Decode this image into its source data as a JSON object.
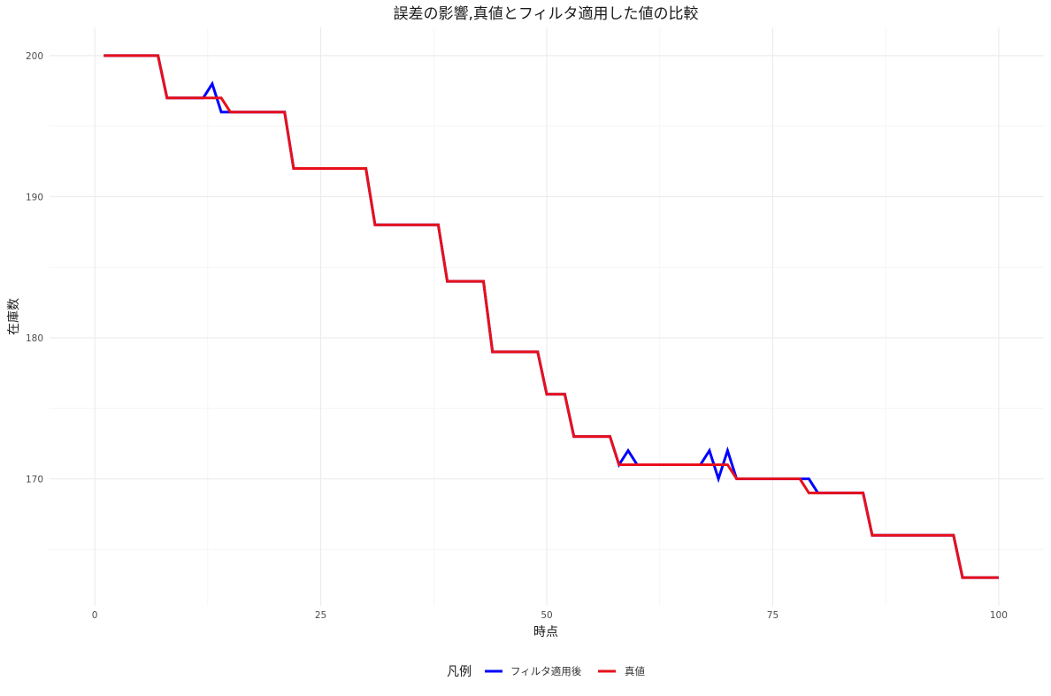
{
  "chart_data": {
    "type": "line",
    "title": "誤差の影響,真値とフィルタ適用した値の比較",
    "xlabel": "時点",
    "ylabel": "在庫数",
    "xlim": [
      0,
      100
    ],
    "ylim": [
      161,
      202
    ],
    "x_ticks": [
      0,
      25,
      50,
      75,
      100
    ],
    "x_tick_labels": [
      "0",
      "25",
      "50",
      "75",
      "100"
    ],
    "y_ticks": [
      170,
      180,
      190,
      200
    ],
    "y_tick_labels": [
      "170",
      "180",
      "190",
      "200"
    ],
    "grid": true,
    "legend": {
      "title": "凡例",
      "position": "bottom"
    },
    "series": [
      {
        "name": "フィルタ適用後",
        "color": "#0000ff",
        "points": [
          [
            1,
            200
          ],
          [
            7,
            200
          ],
          [
            8,
            197
          ],
          [
            12,
            197
          ],
          [
            13,
            198
          ],
          [
            14,
            196
          ],
          [
            21,
            196
          ],
          [
            22,
            192
          ],
          [
            30,
            192
          ],
          [
            31,
            188
          ],
          [
            38,
            188
          ],
          [
            39,
            184
          ],
          [
            43,
            184
          ],
          [
            44,
            179
          ],
          [
            49,
            179
          ],
          [
            50,
            176
          ],
          [
            52,
            176
          ],
          [
            53,
            173
          ],
          [
            57,
            173
          ],
          [
            58,
            171
          ],
          [
            59,
            172
          ],
          [
            60,
            171
          ],
          [
            67,
            171
          ],
          [
            68,
            172
          ],
          [
            69,
            170
          ],
          [
            70,
            172
          ],
          [
            71,
            170
          ],
          [
            78,
            170
          ],
          [
            79,
            170
          ],
          [
            80,
            169
          ],
          [
            85,
            169
          ],
          [
            86,
            166
          ],
          [
            95,
            166
          ],
          [
            96,
            163
          ],
          [
            100,
            163
          ]
        ]
      },
      {
        "name": "真値",
        "color": "#e8101a",
        "points": [
          [
            1,
            200
          ],
          [
            7,
            200
          ],
          [
            8,
            197
          ],
          [
            14,
            197
          ],
          [
            15,
            196
          ],
          [
            21,
            196
          ],
          [
            22,
            192
          ],
          [
            30,
            192
          ],
          [
            31,
            188
          ],
          [
            38,
            188
          ],
          [
            39,
            184
          ],
          [
            43,
            184
          ],
          [
            44,
            179
          ],
          [
            49,
            179
          ],
          [
            50,
            176
          ],
          [
            52,
            176
          ],
          [
            53,
            173
          ],
          [
            57,
            173
          ],
          [
            58,
            171
          ],
          [
            70,
            171
          ],
          [
            71,
            170
          ],
          [
            78,
            170
          ],
          [
            79,
            169
          ],
          [
            85,
            169
          ],
          [
            86,
            166
          ],
          [
            95,
            166
          ],
          [
            96,
            163
          ],
          [
            100,
            163
          ]
        ]
      }
    ]
  }
}
